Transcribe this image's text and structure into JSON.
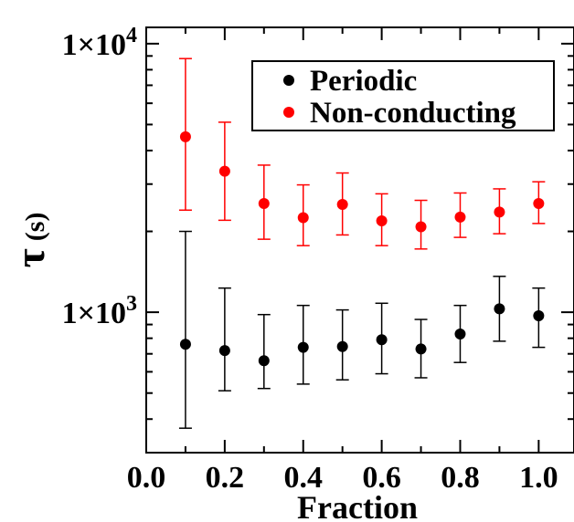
{
  "chart_data": {
    "type": "scatter",
    "x_label": "Fraction",
    "y_label_symbol": "τ",
    "y_label_unit": "(s)",
    "x_ticks": [
      "0.0",
      "0.2",
      "0.4",
      "0.6",
      "0.8",
      "1.0"
    ],
    "x_tick_values": [
      0.0,
      0.2,
      0.4,
      0.6,
      0.8,
      1.0
    ],
    "y_ticks": [
      {
        "value": 1000,
        "base": "1×10",
        "exp": "3"
      },
      {
        "value": 10000,
        "base": "1×10",
        "exp": "4"
      }
    ],
    "xlim": [
      0.0,
      1.09
    ],
    "ylim": [
      300,
      11500
    ],
    "y_scale": "log",
    "legend_position": "top-right",
    "series": [
      {
        "name": "Periodic",
        "color": "#000000",
        "x": [
          0.1,
          0.2,
          0.3,
          0.4,
          0.5,
          0.6,
          0.7,
          0.8,
          0.9,
          1.0
        ],
        "y": [
          760,
          720,
          660,
          740,
          745,
          790,
          730,
          830,
          1030,
          970
        ],
        "err_low": [
          370,
          510,
          520,
          540,
          560,
          590,
          570,
          650,
          780,
          740
        ],
        "err_high": [
          2000,
          1230,
          980,
          1060,
          1020,
          1080,
          940,
          1060,
          1360,
          1230
        ]
      },
      {
        "name": "Non-conducting",
        "color": "#ff0000",
        "x": [
          0.1,
          0.2,
          0.3,
          0.4,
          0.5,
          0.6,
          0.7,
          0.8,
          0.9,
          1.0
        ],
        "y": [
          4500,
          3350,
          2540,
          2250,
          2520,
          2190,
          2080,
          2260,
          2360,
          2540
        ],
        "err_low": [
          2400,
          2200,
          1870,
          1770,
          1940,
          1770,
          1720,
          1900,
          1960,
          2140
        ],
        "err_high": [
          8800,
          5100,
          3530,
          2980,
          3300,
          2760,
          2610,
          2780,
          2880,
          3060
        ]
      }
    ]
  }
}
